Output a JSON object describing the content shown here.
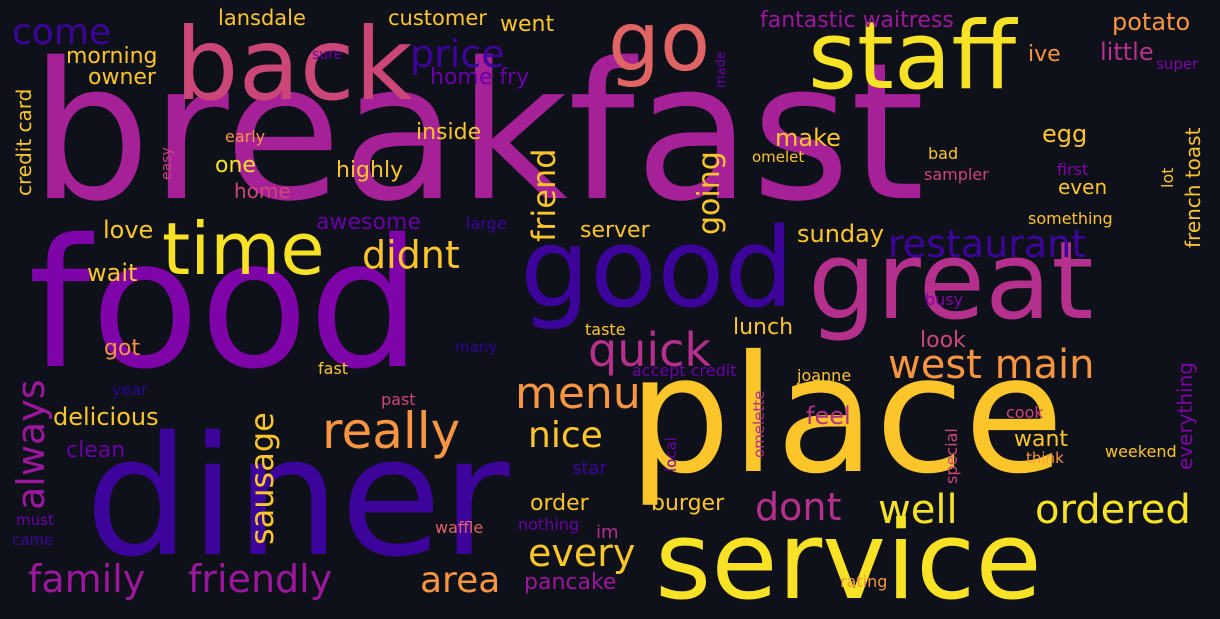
{
  "palette": {
    "background": "#0f111a",
    "yellow": "#f7e225",
    "gold": "#fcc52a",
    "orange": "#f89540",
    "salmon": "#e06463",
    "pink": "#cc4778",
    "magenta": "#a62098",
    "purple": "#7e03a8",
    "violet": "#6a00a8",
    "indigo": "#3d049c",
    "blue": "#2c0594"
  },
  "words": [
    {
      "text": "breakfast",
      "color": "#a62098"
    },
    {
      "text": "food",
      "color": "#7e03a8"
    },
    {
      "text": "place",
      "color": "#fcc52a"
    },
    {
      "text": "diner",
      "color": "#3d049c"
    },
    {
      "text": "service",
      "color": "#f7e225"
    },
    {
      "text": "good",
      "color": "#3d049c"
    },
    {
      "text": "great",
      "color": "#b52f8c"
    },
    {
      "text": "staff",
      "color": "#f7e225"
    },
    {
      "text": "back",
      "color": "#cc4778"
    },
    {
      "text": "go",
      "color": "#e06463"
    },
    {
      "text": "time",
      "color": "#f7e225"
    },
    {
      "text": "price",
      "color": "#3d049c"
    },
    {
      "text": "restaurant",
      "color": "#3d049c"
    },
    {
      "text": "west main",
      "color": "#f89540"
    },
    {
      "text": "really",
      "color": "#f89540"
    },
    {
      "text": "quick",
      "color": "#b52f8c"
    },
    {
      "text": "menu",
      "color": "#f89540"
    },
    {
      "text": "family",
      "color": "#9c179e"
    },
    {
      "text": "friendly",
      "color": "#9c179e"
    },
    {
      "text": "well",
      "color": "#f7e225"
    },
    {
      "text": "ordered",
      "color": "#f7e225"
    },
    {
      "text": "nice",
      "color": "#fcc52a"
    },
    {
      "text": "every",
      "color": "#fcc52a"
    },
    {
      "text": "area",
      "color": "#f89540"
    },
    {
      "text": "dont",
      "color": "#b52f8c"
    },
    {
      "text": "didnt",
      "color": "#fcc52a"
    },
    {
      "text": "come",
      "color": "#3d049c"
    },
    {
      "text": "always",
      "color": "#9c179e"
    },
    {
      "text": "sausage",
      "color": "#fcc52a"
    },
    {
      "text": "friend",
      "color": "#fcc52a"
    },
    {
      "text": "going",
      "color": "#fcc52a"
    },
    {
      "text": "lansdale",
      "color": "#fcc52a"
    },
    {
      "text": "customer",
      "color": "#fcc52a"
    },
    {
      "text": "went",
      "color": "#fcc52a"
    },
    {
      "text": "fantastic waitress",
      "color": "#9c179e"
    },
    {
      "text": "potato",
      "color": "#f89540"
    },
    {
      "text": "ive",
      "color": "#f89540"
    },
    {
      "text": "little",
      "color": "#b52f8c"
    },
    {
      "text": "super",
      "color": "#7e03a8"
    },
    {
      "text": "morning",
      "color": "#fcc52a"
    },
    {
      "text": "owner",
      "color": "#fcc52a"
    },
    {
      "text": "sure",
      "color": "#6a00a8"
    },
    {
      "text": "made",
      "color": "#6a00a8"
    },
    {
      "text": "home fry",
      "color": "#6a00a8"
    },
    {
      "text": "credit card",
      "color": "#fcc52a"
    },
    {
      "text": "early",
      "color": "#f89540"
    },
    {
      "text": "inside",
      "color": "#fcc52a"
    },
    {
      "text": "easy",
      "color": "#cc4778"
    },
    {
      "text": "one",
      "color": "#f7e225"
    },
    {
      "text": "highly",
      "color": "#fcc52a"
    },
    {
      "text": "home",
      "color": "#cc4778"
    },
    {
      "text": "make",
      "color": "#fcc52a"
    },
    {
      "text": "egg",
      "color": "#fcc52a"
    },
    {
      "text": "omelet",
      "color": "#fcc52a"
    },
    {
      "text": "bad",
      "color": "#fcc52a"
    },
    {
      "text": "first",
      "color": "#7e03a8"
    },
    {
      "text": "sampler",
      "color": "#cc4778"
    },
    {
      "text": "even",
      "color": "#fcc52a"
    },
    {
      "text": "lot",
      "color": "#fcc52a"
    },
    {
      "text": "french toast",
      "color": "#fcc52a"
    },
    {
      "text": "something",
      "color": "#fcc52a"
    },
    {
      "text": "awesome",
      "color": "#6a00a8"
    },
    {
      "text": "large",
      "color": "#3d049c"
    },
    {
      "text": "love",
      "color": "#fcc52a"
    },
    {
      "text": "server",
      "color": "#fcc52a"
    },
    {
      "text": "sunday",
      "color": "#fcc52a"
    },
    {
      "text": "wait",
      "color": "#fcc52a"
    },
    {
      "text": "busy",
      "color": "#7e03a8"
    },
    {
      "text": "got",
      "color": "#f89540"
    },
    {
      "text": "taste",
      "color": "#fcc52a"
    },
    {
      "text": "lunch",
      "color": "#fcc52a"
    },
    {
      "text": "look",
      "color": "#cc4778"
    },
    {
      "text": "many",
      "color": "#2c0594"
    },
    {
      "text": "fast",
      "color": "#fcc52a"
    },
    {
      "text": "accept credit",
      "color": "#6a00a8"
    },
    {
      "text": "joanne",
      "color": "#fcc52a"
    },
    {
      "text": "everything",
      "color": "#7e03a8"
    },
    {
      "text": "year",
      "color": "#2c0594"
    },
    {
      "text": "past",
      "color": "#cc4778"
    },
    {
      "text": "omelette",
      "color": "#b52f8c"
    },
    {
      "text": "delicious",
      "color": "#fcc52a"
    },
    {
      "text": "feel",
      "color": "#b52f8c"
    },
    {
      "text": "cook",
      "color": "#cc4778"
    },
    {
      "text": "local",
      "color": "#6a00a8"
    },
    {
      "text": "special",
      "color": "#cc4778"
    },
    {
      "text": "clean",
      "color": "#6a00a8"
    },
    {
      "text": "want",
      "color": "#fcc52a"
    },
    {
      "text": "think",
      "color": "#f89540"
    },
    {
      "text": "weekend",
      "color": "#fcc52a"
    },
    {
      "text": "star",
      "color": "#3d049c"
    },
    {
      "text": "order",
      "color": "#fcc52a"
    },
    {
      "text": "burger",
      "color": "#fcc52a"
    },
    {
      "text": "waffle",
      "color": "#e06463"
    },
    {
      "text": "nothing",
      "color": "#6a00a8"
    },
    {
      "text": "im",
      "color": "#b52f8c"
    },
    {
      "text": "must",
      "color": "#6a00a8"
    },
    {
      "text": "came",
      "color": "#3d049c"
    },
    {
      "text": "pancake",
      "color": "#9c179e"
    },
    {
      "text": "rating",
      "color": "#f89540"
    }
  ]
}
